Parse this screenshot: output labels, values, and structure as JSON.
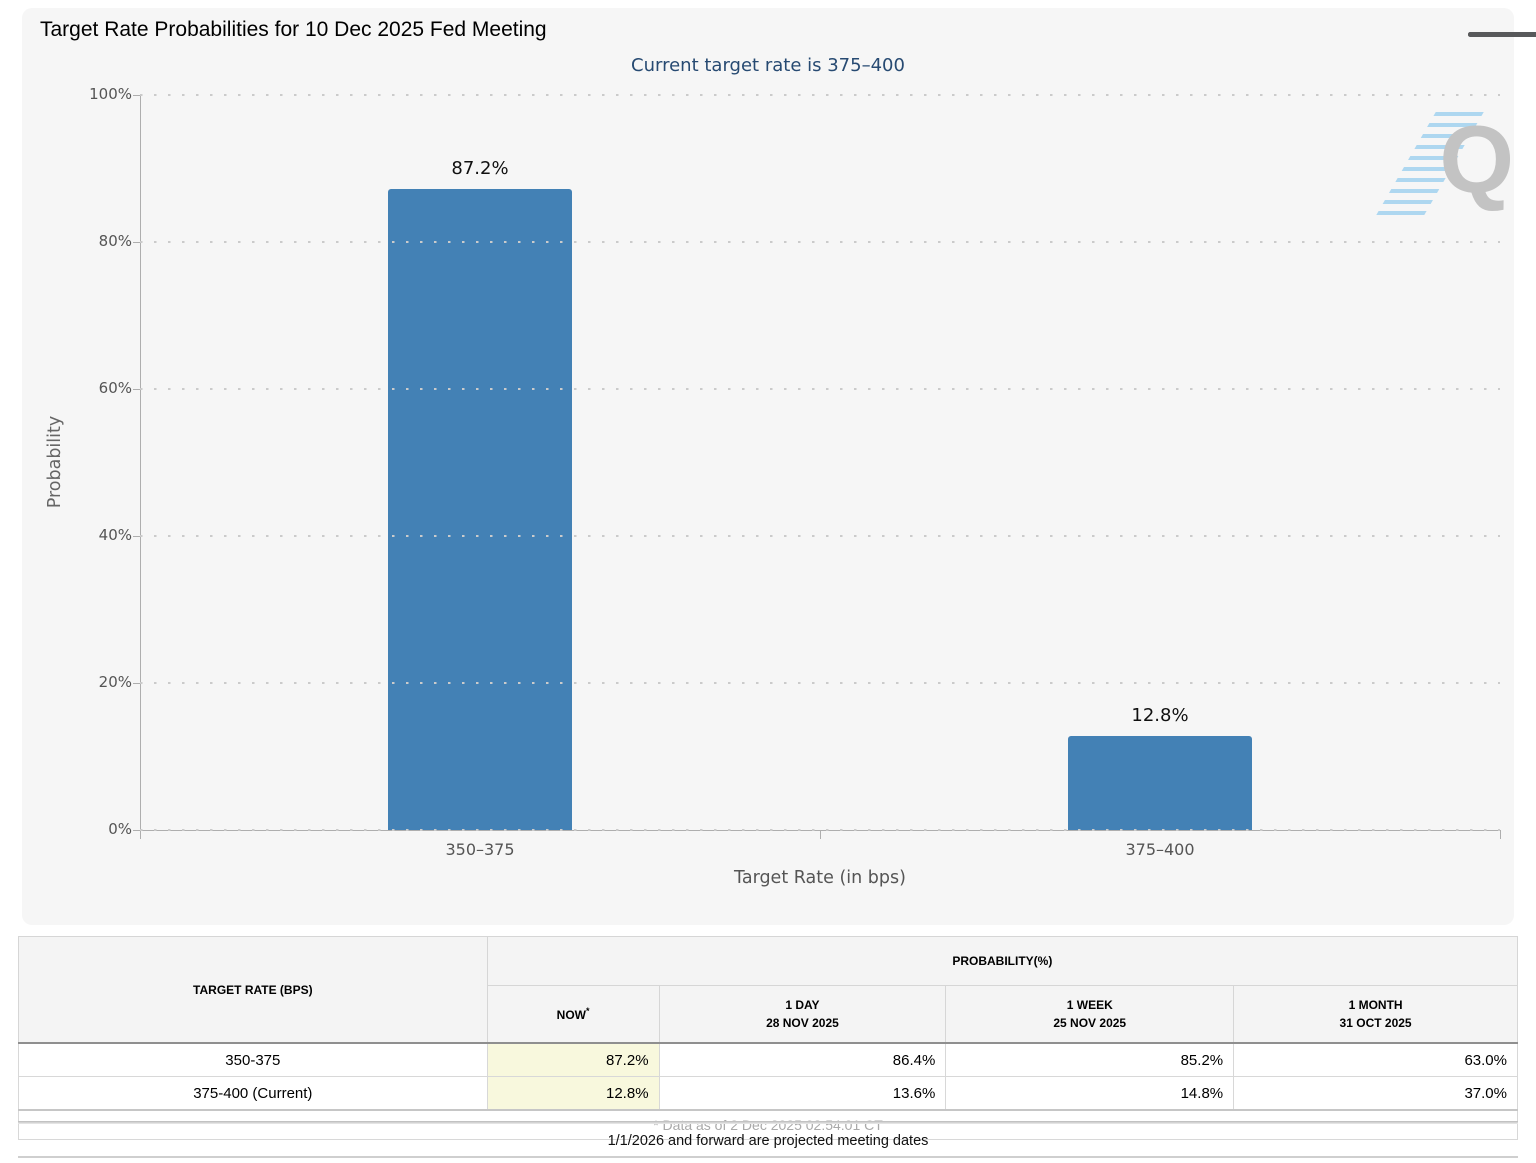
{
  "page": {
    "title": "Target Rate Probabilities for 10 Dec 2025 Fed Meeting",
    "subtitle": "Current target rate is 375–400",
    "watermark_letter": "Q"
  },
  "chart_data": {
    "type": "bar",
    "title": "Target Rate Probabilities for 10 Dec 2025 Fed Meeting",
    "subtitle": "Current target rate is 375–400",
    "categories": [
      "350–375",
      "375–400"
    ],
    "values": [
      87.2,
      12.8
    ],
    "value_labels": [
      "87.2%",
      "12.8%"
    ],
    "xlabel": "Target Rate (in bps)",
    "ylabel": "Probability",
    "ylim": [
      0,
      100
    ],
    "y_ticks": [
      0,
      20,
      40,
      60,
      80,
      100
    ],
    "y_tick_labels": [
      "0%",
      "20%",
      "40%",
      "60%",
      "80%",
      "100%"
    ],
    "grid": "horizontal-dotted",
    "legend": "none",
    "bar_color": "#4381b5"
  },
  "table": {
    "col1_header": "TARGET RATE (BPS)",
    "group_header": "PROBABILITY(%)",
    "sub_headers": {
      "now": "NOW",
      "now_asterisk": "*",
      "day_line1": "1 DAY",
      "day_line2": "28 NOV 2025",
      "week_line1": "1 WEEK",
      "week_line2": "25 NOV 2025",
      "month_line1": "1 MONTH",
      "month_line2": "31 OCT 2025"
    },
    "rows": [
      {
        "rate": "350-375",
        "now": "87.2%",
        "one_day": "86.4%",
        "one_week": "85.2%",
        "one_month": "63.0%"
      },
      {
        "rate": "375-400 (Current)",
        "now": "12.8%",
        "one_day": "13.6%",
        "one_week": "14.8%",
        "one_month": "37.0%"
      }
    ],
    "footnote": "* Data as of 2 Dec 2025 02:54:01 CT"
  },
  "note": "1/1/2026 and forward are projected meeting dates",
  "colors": {
    "bar": "#4381b5",
    "subtitle_text": "#274a72",
    "now_cell_bg": "#f8f8dd",
    "panel_bg": "#f6f6f6"
  }
}
